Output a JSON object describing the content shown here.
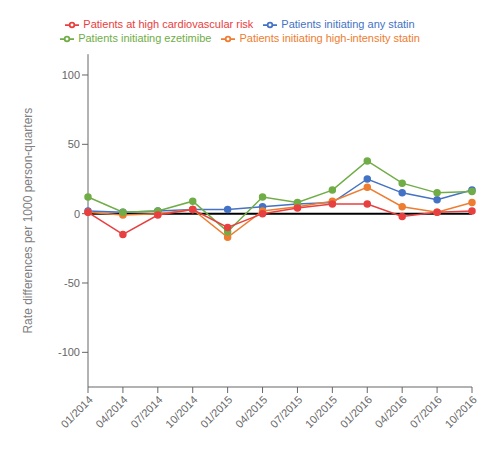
{
  "chart_data": {
    "type": "line",
    "categories": [
      "01/2014",
      "04/2014",
      "07/2014",
      "10/2014",
      "01/2015",
      "04/2015",
      "07/2015",
      "10/2015",
      "01/2016",
      "04/2016",
      "07/2016",
      "10/2016"
    ],
    "series": [
      {
        "name": "Patients initiating any statin",
        "color": "#4472c4",
        "marker": "circle",
        "values": [
          2,
          1,
          2,
          3,
          3,
          5,
          7,
          8,
          25,
          15,
          10,
          17
        ]
      },
      {
        "name": "Patients initiating high-intensity statin",
        "color": "#ed7d31",
        "marker": "circle",
        "values": [
          1,
          -1,
          0,
          3,
          -17,
          2,
          5,
          9,
          19,
          5,
          1,
          8
        ]
      },
      {
        "name": "Patients initiating ezetimibe",
        "color": "#70ad47",
        "marker": "circle",
        "values": [
          12,
          1,
          2,
          9,
          -13,
          12,
          8,
          17,
          38,
          22,
          15,
          16
        ]
      },
      {
        "name": "Patients at high cardiovascular risk",
        "color": "#e84040",
        "marker": "circle",
        "values": [
          1,
          -15,
          -1,
          3,
          -10,
          0,
          4,
          7,
          7,
          -2,
          1,
          2
        ]
      }
    ],
    "ylim": [
      -125,
      115
    ],
    "yticks": [
      -100,
      -50,
      0,
      50,
      100
    ],
    "ylabel": "Rate differences per 1000 person-quarters",
    "hline": 0,
    "legend": "top",
    "grid": false
  }
}
